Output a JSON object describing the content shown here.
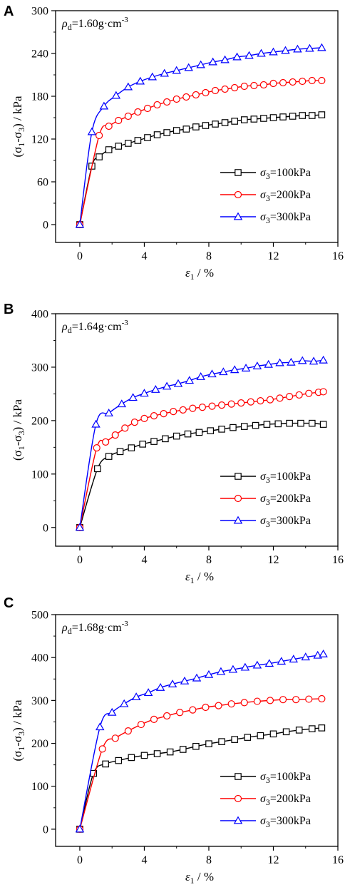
{
  "chart_data": [
    {
      "type": "line",
      "panel_label": "A",
      "annotation": {
        "main": "ρ",
        "sub": "d",
        "text": "=1.60g·cm",
        "sup": "-3"
      },
      "xlabel": {
        "main": "ε",
        "sub": "1",
        "text": " / %"
      },
      "ylabel": {
        "p1": "(σ",
        "s1": "1",
        "p2": "-σ",
        "s2": "3",
        "p3": ") / kPa"
      },
      "xlim": [
        -1.5,
        16
      ],
      "ylim": [
        -25,
        300
      ],
      "xticks": [
        0,
        4,
        8,
        12,
        16
      ],
      "yticks": [
        0,
        60,
        120,
        180,
        240,
        300
      ],
      "legend_position": "lower-right",
      "series": [
        {
          "name": "σ3=100kPa",
          "legend": {
            "main": "σ",
            "sub": "3",
            "text": "=100kPa"
          },
          "color": "#000000",
          "marker": "square",
          "x": [
            0,
            0.75,
            1.2,
            1.8,
            2.4,
            3.0,
            3.6,
            4.2,
            4.8,
            5.4,
            6.0,
            6.6,
            7.2,
            7.8,
            8.4,
            9.0,
            9.6,
            10.2,
            10.8,
            11.4,
            12.0,
            12.6,
            13.2,
            13.8,
            14.4,
            15.0
          ],
          "y": [
            0,
            82,
            95,
            105,
            110,
            114,
            118,
            122,
            126,
            129,
            132,
            134,
            137,
            139,
            141,
            143,
            145,
            147,
            148,
            149,
            150,
            151,
            152,
            153,
            153,
            154
          ]
        },
        {
          "name": "σ3=200kPa",
          "legend": {
            "main": "σ",
            "sub": "3",
            "text": "=200kPa"
          },
          "color": "#ff0000",
          "marker": "circle",
          "x": [
            0,
            1.2,
            1.8,
            2.4,
            3.0,
            3.6,
            4.2,
            4.8,
            5.4,
            6.0,
            6.6,
            7.2,
            7.8,
            8.4,
            9.0,
            9.6,
            10.2,
            10.8,
            11.4,
            12.0,
            12.6,
            13.2,
            13.8,
            14.4,
            15.0
          ],
          "y": [
            0,
            125,
            138,
            146,
            152,
            158,
            163,
            168,
            172,
            176,
            179,
            182,
            185,
            188,
            190,
            192,
            194,
            195,
            196,
            198,
            199,
            200,
            201,
            202,
            202
          ]
        },
        {
          "name": "σ3=300kPa",
          "legend": {
            "main": "σ",
            "sub": "3",
            "text": "=300kPa"
          },
          "color": "#0000ff",
          "marker": "triangle",
          "x": [
            0,
            0.75,
            1.5,
            2.25,
            3.0,
            3.75,
            4.5,
            5.25,
            6.0,
            6.75,
            7.5,
            8.25,
            9.0,
            9.75,
            10.5,
            11.25,
            12.0,
            12.75,
            13.5,
            14.25,
            15.0
          ],
          "y": [
            0,
            130,
            166,
            181,
            193,
            201,
            207,
            212,
            216,
            220,
            224,
            228,
            231,
            235,
            237,
            240,
            242,
            244,
            246,
            247,
            248
          ]
        }
      ]
    },
    {
      "type": "line",
      "panel_label": "B",
      "annotation": {
        "main": "ρ",
        "sub": "d",
        "text": "=1.64g·cm",
        "sup": "-3"
      },
      "xlabel": {
        "main": "ε",
        "sub": "1",
        "text": " / %"
      },
      "ylabel": {
        "p1": "(σ",
        "s1": "1",
        "p2": "-σ",
        "s2": "3",
        "p3": ") / kPa"
      },
      "xlim": [
        -1.5,
        16
      ],
      "ylim": [
        -35,
        400
      ],
      "xticks": [
        0,
        4,
        8,
        12,
        16
      ],
      "yticks": [
        0,
        100,
        200,
        300,
        400
      ],
      "legend_position": "lower-right",
      "series": [
        {
          "name": "σ3=100kPa",
          "legend": {
            "main": "σ",
            "sub": "3",
            "text": "=100kPa"
          },
          "color": "#000000",
          "marker": "square",
          "x": [
            0,
            1.1,
            1.8,
            2.5,
            3.2,
            3.9,
            4.6,
            5.3,
            6.0,
            6.7,
            7.4,
            8.1,
            8.8,
            9.5,
            10.2,
            10.9,
            11.6,
            12.3,
            13.0,
            13.7,
            14.4,
            15.1
          ],
          "y": [
            0,
            110,
            133,
            142,
            149,
            156,
            161,
            166,
            171,
            175,
            178,
            181,
            184,
            187,
            189,
            191,
            193,
            194,
            195,
            195,
            195,
            193
          ]
        },
        {
          "name": "σ3=200kPa",
          "legend": {
            "main": "σ",
            "sub": "3",
            "text": "=200kPa"
          },
          "color": "#ff0000",
          "marker": "circle",
          "x": [
            0,
            1.05,
            1.6,
            2.2,
            2.8,
            3.4,
            4.0,
            4.6,
            5.2,
            5.8,
            6.4,
            7.0,
            7.6,
            8.2,
            8.8,
            9.4,
            10.0,
            10.6,
            11.2,
            11.8,
            12.4,
            13.0,
            13.6,
            14.2,
            14.8,
            15.1
          ],
          "y": [
            0,
            149,
            160,
            173,
            186,
            197,
            204,
            209,
            213,
            217,
            220,
            223,
            225,
            227,
            229,
            231,
            233,
            235,
            237,
            239,
            242,
            245,
            248,
            251,
            253,
            254
          ]
        },
        {
          "name": "σ3=300kPa",
          "legend": {
            "main": "σ",
            "sub": "3",
            "text": "=300kPa"
          },
          "color": "#0000ff",
          "marker": "triangle",
          "x": [
            0,
            1.0,
            1.8,
            2.6,
            3.3,
            4.0,
            4.7,
            5.4,
            6.1,
            6.8,
            7.5,
            8.2,
            8.9,
            9.6,
            10.3,
            11.0,
            11.7,
            12.4,
            13.1,
            13.8,
            14.5,
            15.1
          ],
          "y": [
            0,
            193,
            214,
            231,
            243,
            251,
            258,
            264,
            269,
            275,
            282,
            287,
            291,
            295,
            298,
            302,
            305,
            308,
            309,
            312,
            311,
            313
          ]
        }
      ]
    },
    {
      "type": "line",
      "panel_label": "C",
      "annotation": {
        "main": "ρ",
        "sub": "d",
        "text": "=1.68g·cm",
        "sup": "-3"
      },
      "xlabel": {
        "main": "ε",
        "sub": "1",
        "text": " / %"
      },
      "ylabel": {
        "p1": "(σ",
        "s1": "1",
        "p2": "-σ",
        "s2": "3",
        "p3": ") / kPa"
      },
      "xlim": [
        -1.5,
        16
      ],
      "ylim": [
        -40,
        500
      ],
      "xticks": [
        0,
        4,
        8,
        12,
        16
      ],
      "yticks": [
        0,
        100,
        200,
        300,
        400,
        500
      ],
      "legend_position": "lower-right",
      "series": [
        {
          "name": "σ3=100kPa",
          "legend": {
            "main": "σ",
            "sub": "3",
            "text": "=100kPa"
          },
          "color": "#000000",
          "marker": "square",
          "x": [
            0,
            0.85,
            1.6,
            2.4,
            3.2,
            4.0,
            4.8,
            5.6,
            6.4,
            7.2,
            8.0,
            8.8,
            9.6,
            10.4,
            11.2,
            12.0,
            12.8,
            13.6,
            14.4,
            15.0
          ],
          "y": [
            0,
            130,
            152,
            160,
            167,
            172,
            176,
            180,
            186,
            193,
            199,
            204,
            209,
            214,
            218,
            222,
            227,
            231,
            234,
            236
          ]
        },
        {
          "name": "σ3=200kPa",
          "legend": {
            "main": "σ",
            "sub": "3",
            "text": "=200kPa"
          },
          "color": "#ff0000",
          "marker": "circle",
          "x": [
            0,
            1.4,
            2.2,
            3.0,
            3.8,
            4.6,
            5.4,
            6.2,
            7.0,
            7.8,
            8.6,
            9.4,
            10.2,
            11.0,
            11.8,
            12.6,
            13.4,
            14.2,
            15.0
          ],
          "y": [
            0,
            187,
            212,
            229,
            244,
            256,
            264,
            272,
            278,
            284,
            288,
            292,
            295,
            298,
            300,
            302,
            302,
            303,
            304
          ]
        },
        {
          "name": "σ3=300kPa",
          "legend": {
            "main": "σ",
            "sub": "3",
            "text": "=300kPa"
          },
          "color": "#0000ff",
          "marker": "triangle",
          "x": [
            0,
            1.25,
            2.0,
            2.75,
            3.5,
            4.25,
            5.0,
            5.75,
            6.5,
            7.25,
            8.0,
            8.75,
            9.5,
            10.25,
            11.0,
            11.75,
            12.5,
            13.25,
            14.0,
            14.75,
            15.1
          ],
          "y": [
            0,
            238,
            272,
            292,
            308,
            318,
            330,
            338,
            345,
            352,
            360,
            367,
            372,
            377,
            382,
            386,
            391,
            396,
            401,
            405,
            408
          ]
        }
      ]
    }
  ]
}
